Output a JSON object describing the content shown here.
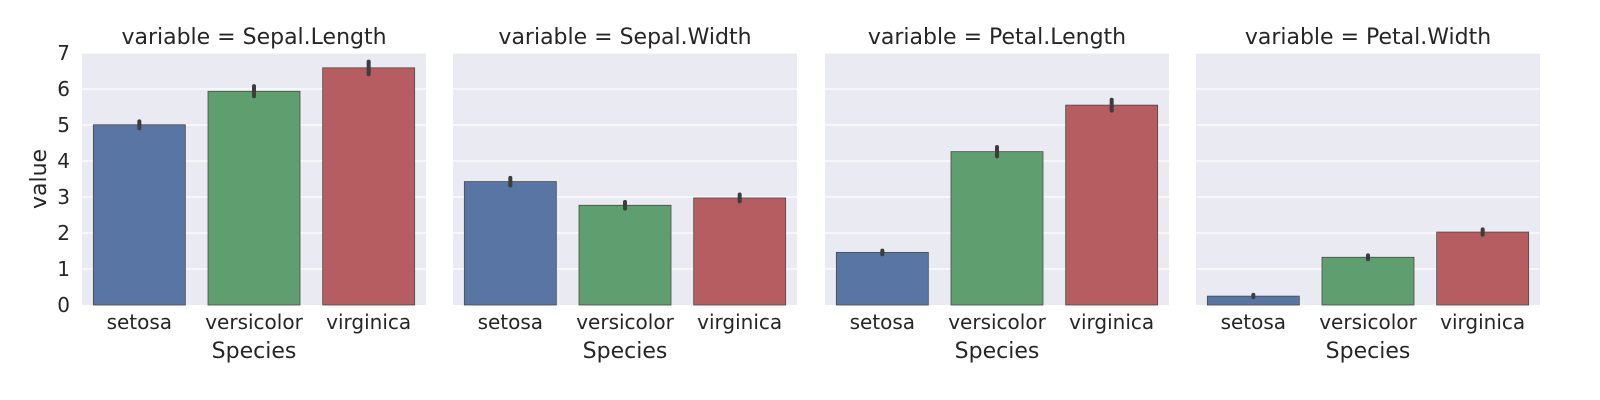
{
  "chart_data": {
    "type": "bar",
    "categories": [
      "setosa",
      "versicolor",
      "virginica"
    ],
    "colors": [
      "#5975A4",
      "#5F9E6E",
      "#B55D60"
    ],
    "ylim": [
      0,
      7
    ],
    "yticks": [
      0,
      1,
      2,
      3,
      4,
      5,
      6,
      7
    ],
    "ylabel": "value",
    "xlabel": "Species",
    "facets": [
      {
        "title": "variable = Sepal.Length",
        "values": [
          5.006,
          5.936,
          6.588
        ],
        "ci": [
          [
            4.91,
            5.1
          ],
          [
            5.8,
            6.08
          ],
          [
            6.41,
            6.76
          ]
        ]
      },
      {
        "title": "variable = Sepal.Width",
        "values": [
          3.428,
          2.77,
          2.974
        ],
        "ci": [
          [
            3.32,
            3.53
          ],
          [
            2.68,
            2.86
          ],
          [
            2.88,
            3.07
          ]
        ]
      },
      {
        "title": "variable = Petal.Length",
        "values": [
          1.462,
          4.26,
          5.552
        ],
        "ci": [
          [
            1.41,
            1.51
          ],
          [
            4.13,
            4.39
          ],
          [
            5.4,
            5.7
          ]
        ]
      },
      {
        "title": "variable = Petal.Width",
        "values": [
          0.246,
          1.326,
          2.026
        ],
        "ci": [
          [
            0.22,
            0.28
          ],
          [
            1.27,
            1.38
          ],
          [
            1.95,
            2.1
          ]
        ]
      }
    ]
  }
}
